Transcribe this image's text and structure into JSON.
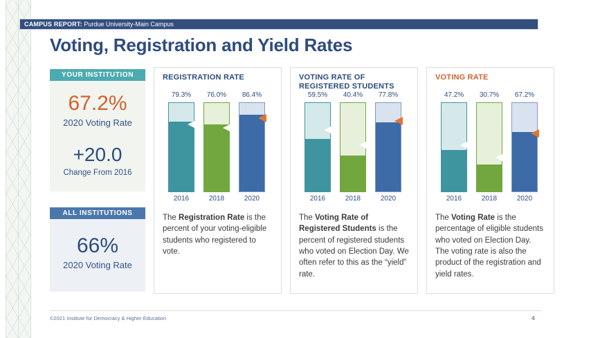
{
  "page": {
    "report_label": "CAMPUS REPORT:",
    "report_value": " Purdue University-Main Campus",
    "title": "Voting, Registration and Yield Rates",
    "footer": "©2021 Institute for Democracy & Higher Education",
    "page_number": "4"
  },
  "sidebar": {
    "your_institution": {
      "header": "YOUR INSTITUTION",
      "stat1_value": "67.2%",
      "stat1_label": "2020 Voting Rate",
      "stat2_value": "+20.0",
      "stat2_label": "Change From 2016"
    },
    "all_institutions": {
      "header": "ALL INSTITUTIONS",
      "stat1_value": "66%",
      "stat1_label": "2020 Voting Rate"
    }
  },
  "colors": {
    "navy": "#2e4b7e",
    "header_bar_bg": "#344e7d",
    "teal_header_bg": "#4caab0",
    "blue_header_bg": "#4b77ac",
    "orange_accent": "#d2622d",
    "marker_orange": "#e2762f",
    "marker_white": "#ffffff"
  },
  "chart_style": {
    "bars": [
      {
        "year": "2016",
        "fill": "#3e95a0",
        "light": "#d5e9eb",
        "border": "#3e95a0",
        "marker": "#ffffff"
      },
      {
        "year": "2018",
        "fill": "#71a73e",
        "light": "#e7f0db",
        "border": "#71a73e",
        "marker": "#ffffff"
      },
      {
        "year": "2020",
        "fill": "#3c6ba7",
        "light": "#d9e2ef",
        "border": "#8097c2",
        "marker": "#e2762f"
      }
    ]
  },
  "chart_data": [
    {
      "type": "bar",
      "title": "REGISTRATION RATE",
      "title_color": "#2c4a7c",
      "categories": [
        "2016",
        "2018",
        "2020"
      ],
      "values": [
        79.3,
        76.0,
        86.4
      ],
      "labels": [
        "79.3%",
        "76.0%",
        "86.4%"
      ],
      "marker_values": [
        75.5,
        72.0,
        82.5
      ],
      "ylim": [
        0,
        100
      ],
      "description": {
        "pre": "The ",
        "term": "Registration Rate",
        "rest": " is the percent of your voting-eligible students who registered to vote."
      }
    },
    {
      "type": "bar",
      "title": "VOTING RATE OF REGISTERED STUDENTS",
      "title_color": "#2c4a7c",
      "categories": [
        "2016",
        "2018",
        "2020"
      ],
      "values": [
        59.5,
        40.4,
        77.8
      ],
      "labels": [
        "59.5%",
        "40.4%",
        "77.8%"
      ],
      "marker_values": [
        69.5,
        52.5,
        79.5
      ],
      "ylim": [
        0,
        100
      ],
      "description": {
        "pre": "The ",
        "term": "Voting Rate of Registered Students",
        "rest": " is the percent of registered students who voted on Election Day. We often refer to this as the “yield” rate."
      }
    },
    {
      "type": "bar",
      "title": "VOTING RATE",
      "title_color": "#d2622d",
      "categories": [
        "2016",
        "2018",
        "2020"
      ],
      "values": [
        47.2,
        30.7,
        67.2
      ],
      "labels": [
        "47.2%",
        "30.7%",
        "67.2%"
      ],
      "marker_values": [
        52.5,
        38.5,
        66.0
      ],
      "ylim": [
        0,
        100
      ],
      "description": {
        "pre": "The ",
        "term": "Voting Rate",
        "rest": " is the percentage of eligible students who voted on Election Day. The voting rate is also the product of the registration and yield rates."
      }
    }
  ]
}
